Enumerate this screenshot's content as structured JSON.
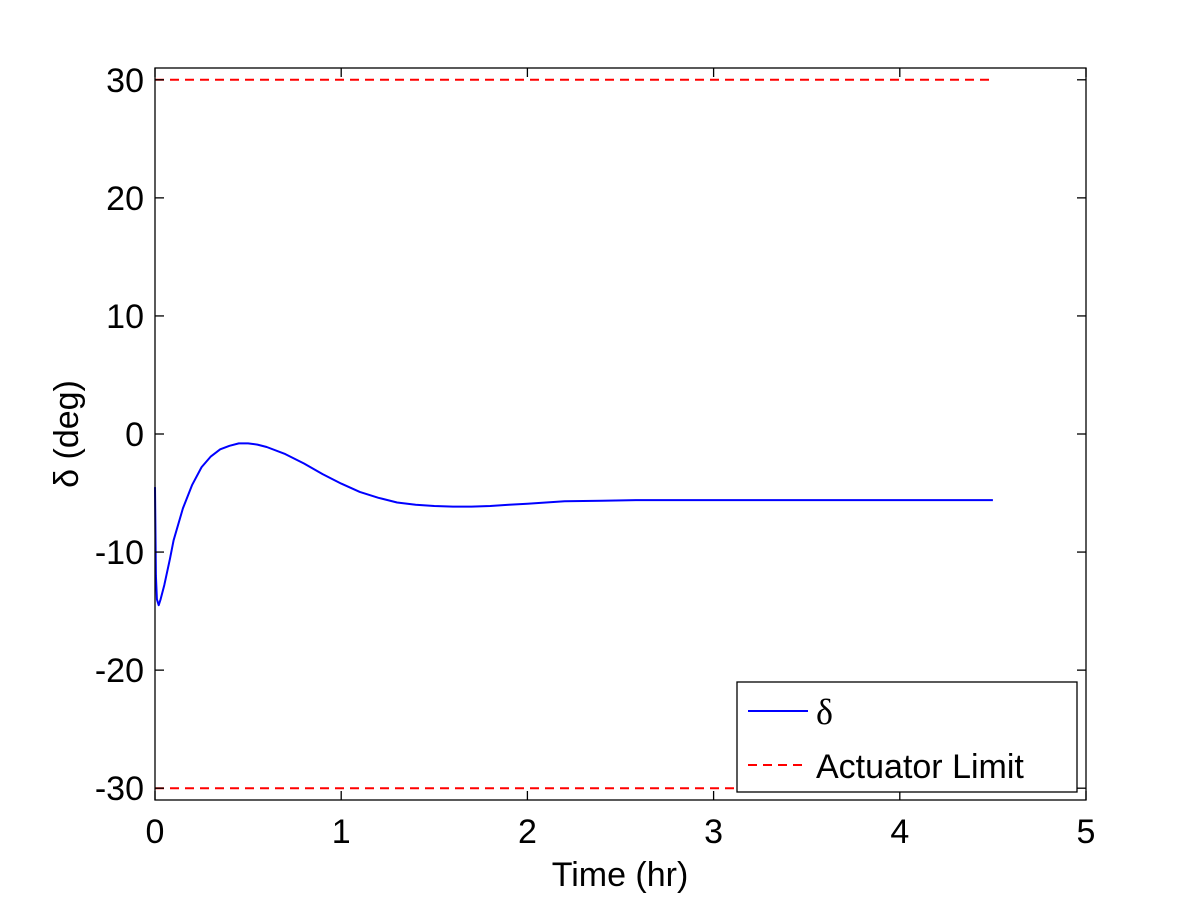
{
  "chart_data": {
    "type": "line",
    "title": "",
    "xlabel": "Time (hr)",
    "ylabel": "δ (deg)",
    "xlim": [
      0,
      5
    ],
    "ylim": [
      -31,
      31
    ],
    "xticks": [
      0,
      1,
      2,
      3,
      4,
      5
    ],
    "yticks": [
      -30,
      -20,
      -10,
      0,
      10,
      20,
      30
    ],
    "grid": false,
    "legend_position": "bottom-right",
    "series": [
      {
        "name": "δ",
        "color": "#0000ff",
        "style": "solid",
        "x": [
          0,
          0.005,
          0.01,
          0.02,
          0.03,
          0.05,
          0.08,
          0.1,
          0.15,
          0.2,
          0.25,
          0.3,
          0.35,
          0.4,
          0.45,
          0.5,
          0.55,
          0.6,
          0.7,
          0.8,
          0.9,
          1.0,
          1.1,
          1.2,
          1.3,
          1.4,
          1.5,
          1.6,
          1.7,
          1.8,
          1.9,
          2.0,
          2.2,
          2.4,
          2.6,
          2.8,
          3.0,
          3.5,
          4.0,
          4.5
        ],
        "y": [
          -4.5,
          -12.0,
          -14.0,
          -14.5,
          -14.0,
          -12.8,
          -10.6,
          -9.0,
          -6.3,
          -4.3,
          -2.8,
          -1.9,
          -1.3,
          -1.0,
          -0.8,
          -0.8,
          -0.9,
          -1.1,
          -1.7,
          -2.5,
          -3.4,
          -4.2,
          -4.9,
          -5.4,
          -5.8,
          -6.0,
          -6.1,
          -6.15,
          -6.15,
          -6.1,
          -6.0,
          -5.9,
          -5.7,
          -5.65,
          -5.6,
          -5.6,
          -5.6,
          -5.6,
          -5.6,
          -5.6
        ]
      },
      {
        "name": "Actuator Limit",
        "color": "#ff0000",
        "style": "dashed",
        "x": [
          0,
          4.5
        ],
        "y": [
          30,
          30
        ]
      },
      {
        "name": "",
        "color": "#ff0000",
        "style": "dashed",
        "x": [
          0,
          4.5
        ],
        "y": [
          -30,
          -30
        ]
      }
    ],
    "legend": [
      {
        "label": "δ",
        "color": "#0000ff",
        "style": "solid"
      },
      {
        "label": "Actuator Limit",
        "color": "#ff0000",
        "style": "dashed"
      }
    ]
  }
}
